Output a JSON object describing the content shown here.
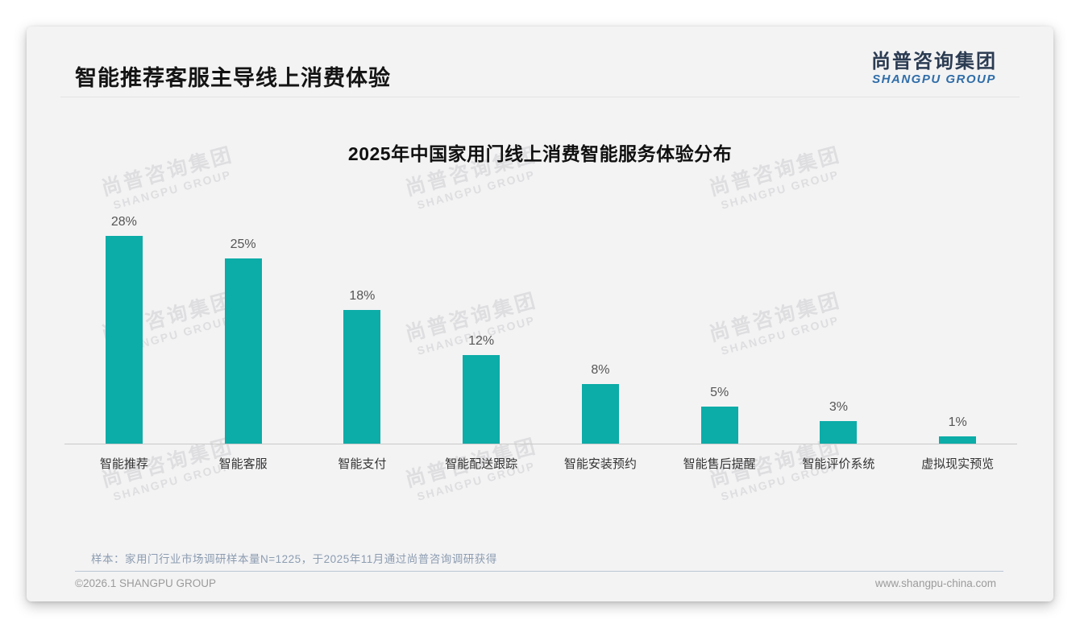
{
  "header": {
    "title": "智能推荐客服主导线上消费体验"
  },
  "logo": {
    "cn": "尚普咨询集团",
    "en": "SHANGPU GROUP"
  },
  "chart_data": {
    "type": "bar",
    "title": "2025年中国家用门线上消费智能服务体验分布",
    "categories": [
      "智能推荐",
      "智能客服",
      "智能支付",
      "智能配送跟踪",
      "智能安装预约",
      "智能售后提醒",
      "智能评价系统",
      "虚拟现实预览"
    ],
    "values": [
      28,
      25,
      18,
      12,
      8,
      5,
      3,
      1
    ],
    "unit": "%",
    "value_labels": [
      "28%",
      "25%",
      "18%",
      "12%",
      "8%",
      "5%",
      "3%",
      "1%"
    ],
    "bar_color": "#0caca8",
    "xlabel": "",
    "ylabel": "",
    "ylim": [
      0,
      30
    ],
    "grid": false,
    "legend": "none"
  },
  "watermark": {
    "line1": "尚普咨询集团",
    "line2": "SHANGPU GROUP"
  },
  "footnote": {
    "text": "样本：家用门行业市场调研样本量N=1225，于2025年11月通过尚普咨询调研获得"
  },
  "footer": {
    "copyright": "©2026.1 SHANGPU GROUP",
    "website": "www.shangpu-china.com"
  },
  "colors": {
    "bar": "#0caca8",
    "card_bg": "#f3f3f4",
    "logo_navy": "#2b3b52",
    "logo_blue": "#2f6da8",
    "footnote_blue_gray": "#8c9cb0",
    "axis_gray": "#c9c9c9"
  }
}
